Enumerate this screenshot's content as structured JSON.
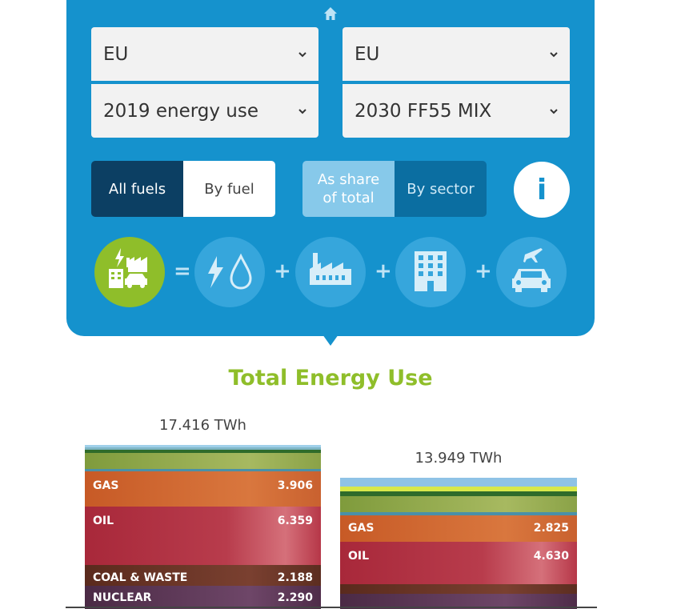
{
  "selectors": {
    "left_region": "EU",
    "right_region": "EU",
    "left_scenario": "2019 energy use",
    "right_scenario": "2030 FF55 MIX"
  },
  "toggles": {
    "all_fuels": "All fuels",
    "by_fuel": "By fuel",
    "as_share": "As share of total",
    "by_sector": "By sector",
    "info": "i"
  },
  "equation": {
    "equals": "=",
    "plus": "+",
    "icons": [
      "total-energy-icon",
      "power-water-icon",
      "industry-icon",
      "buildings-icon",
      "transport-icon"
    ]
  },
  "colors": {
    "panel": "#1592cd",
    "accent_green": "#8fbe2a",
    "active_dark": "#0c3f63",
    "sector_active": "#0b6ea1",
    "share_inactive": "#87c9ea"
  },
  "chart_data": {
    "type": "bar",
    "title": "Total Energy Use",
    "unit": "TWh",
    "bars": [
      {
        "total_label": "17.416 TWh",
        "total": 17416,
        "segments": [
          {
            "name": "GAS",
            "label": "3.906",
            "value": 3906
          },
          {
            "name": "OIL",
            "label": "6.359",
            "value": 6359
          },
          {
            "name": "COAL & WASTE",
            "label": "2.188",
            "value": 2188
          },
          {
            "name": "NUCLEAR",
            "label": "2.290",
            "value": 2290
          }
        ]
      },
      {
        "total_label": "13.949 TWh",
        "total": 13949,
        "segments": [
          {
            "name": "GAS",
            "label": "2.825",
            "value": 2825
          },
          {
            "name": "OIL",
            "label": "4.630",
            "value": 4630
          }
        ]
      }
    ]
  }
}
